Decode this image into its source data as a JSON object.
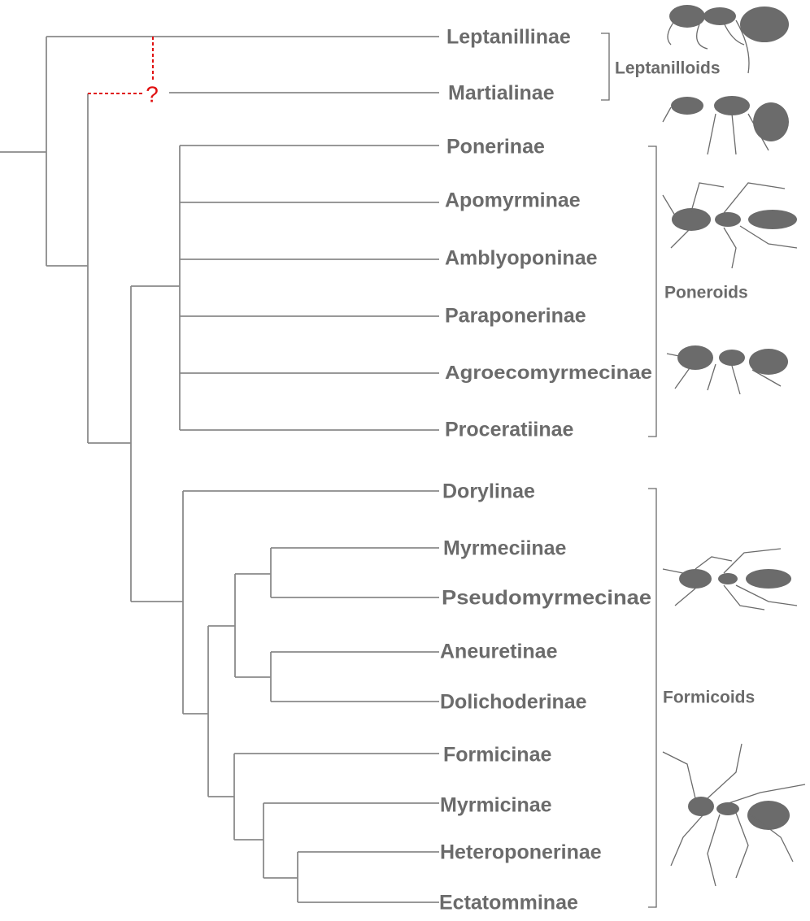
{
  "tree": {
    "taxa": [
      "Leptanillinae",
      "Martialinae",
      "Ponerinae",
      "Apomyrminae",
      "Amblyoponinae",
      "Paraponerinae",
      "Agroecomyrmecinae",
      "Proceratiinae",
      "Dorylinae",
      "Myrmeciinae",
      "Pseudomyrmecinae",
      "Aneuretinae",
      "Dolichoderinae",
      "Formicinae",
      "Myrmicinae",
      "Heteroponerinae",
      "Ectatomminae"
    ],
    "uncertain_mark": "?"
  },
  "groups": [
    "Leptanilloids",
    "Poneroids",
    "Formicoids"
  ]
}
